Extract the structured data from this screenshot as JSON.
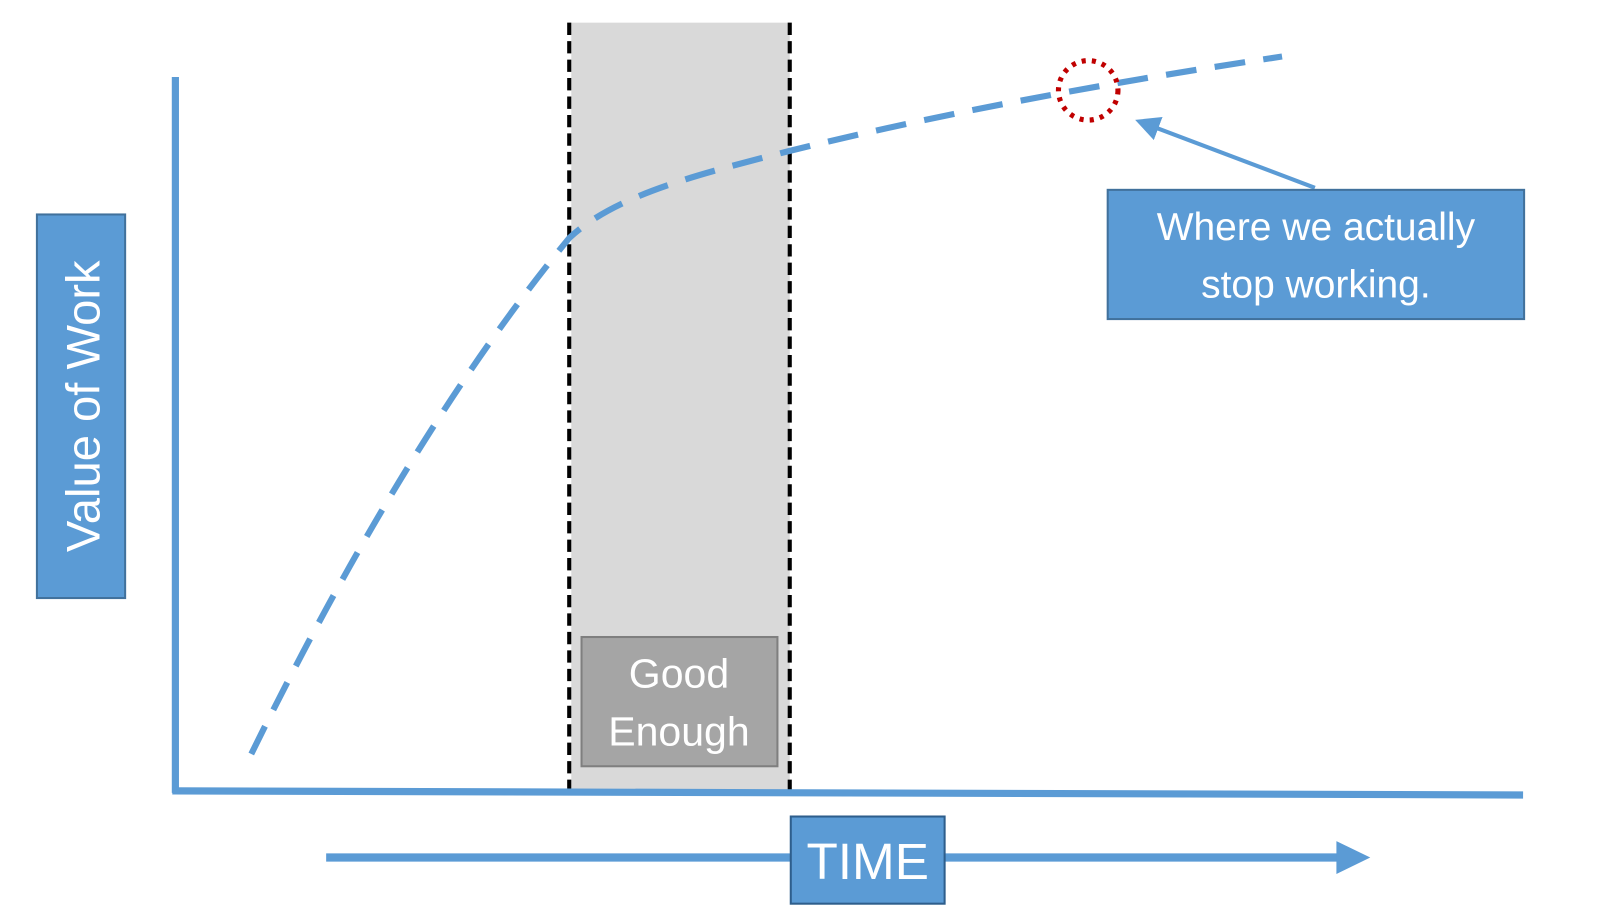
{
  "y_axis_label": "Value of Work",
  "x_axis_label": "TIME",
  "band_label": {
    "line1": "Good",
    "line2": "Enough"
  },
  "callout": {
    "line1": "Where we actually",
    "line2": "stop working."
  },
  "colors": {
    "axis": "#5B9BD5",
    "curve": "#5B9BD5",
    "label_box": "#5B9BD5",
    "band_fill": "#D9D9D9",
    "band_label_box": "#A5A5A5",
    "band_border": "#000000",
    "marker_circle": "#C00000"
  }
}
